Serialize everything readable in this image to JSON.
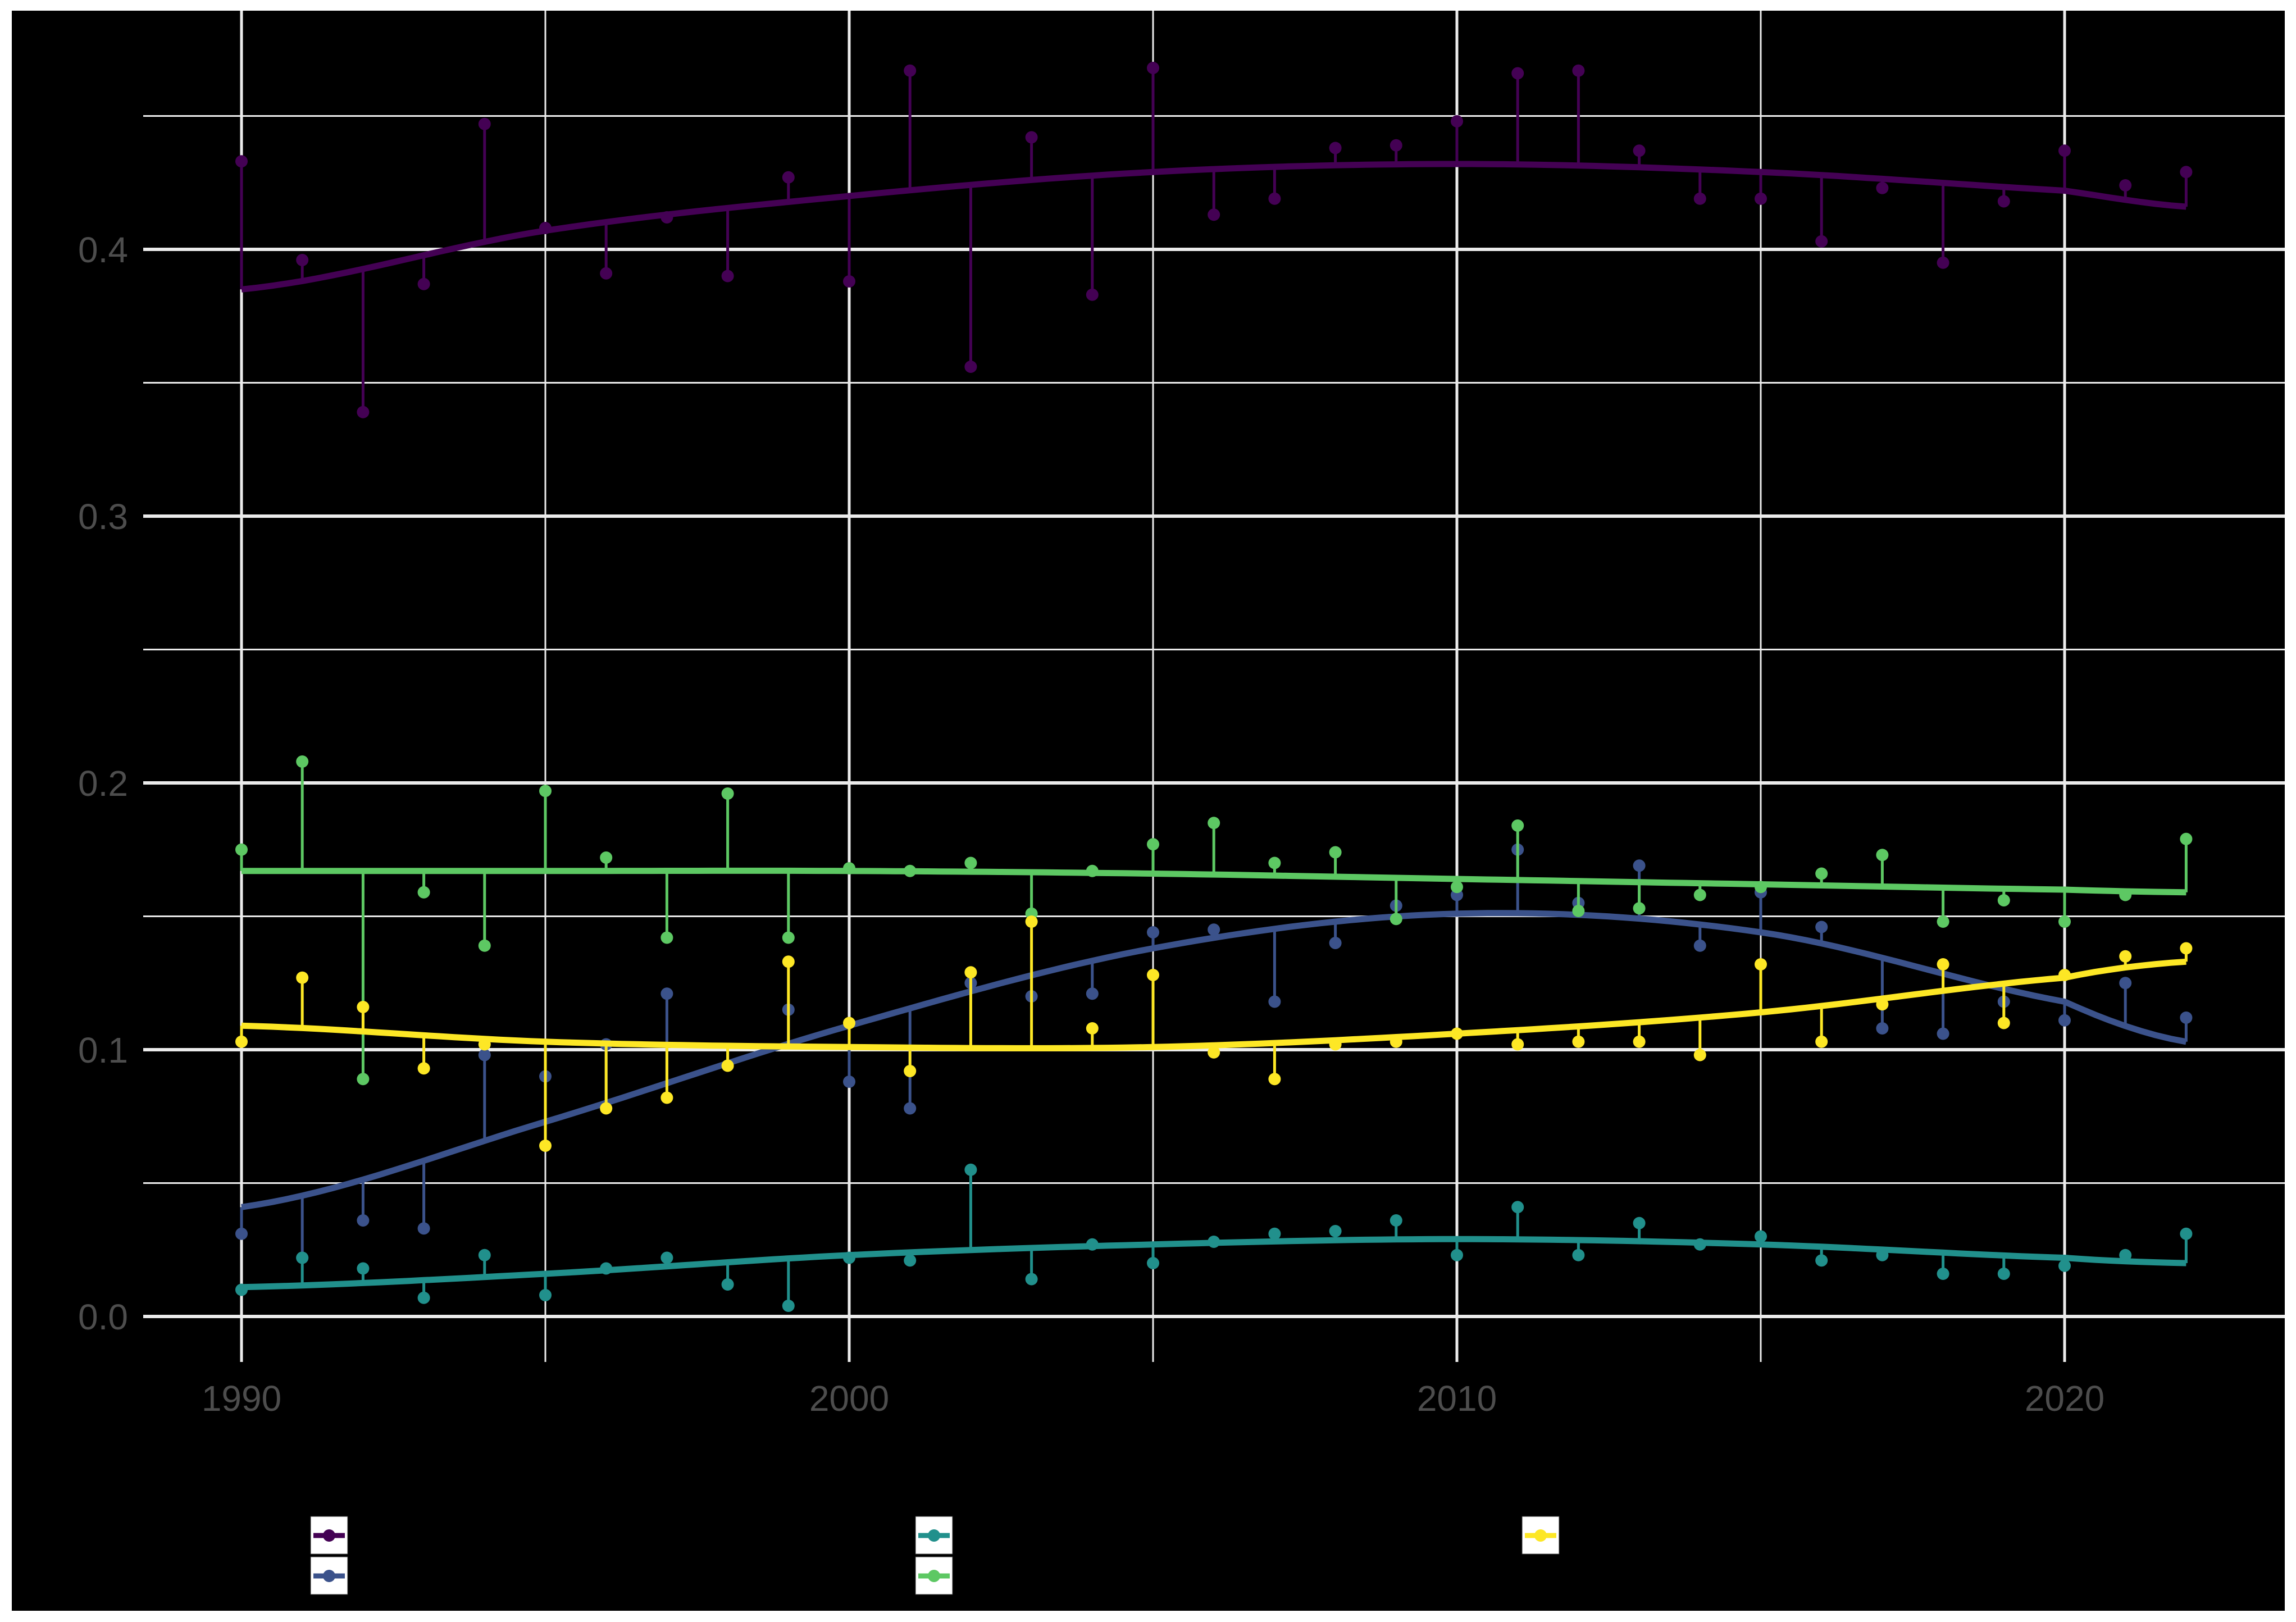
{
  "chart_data": {
    "type": "line",
    "subtype": "lollipop-residuals-with-smooth-fit",
    "title": "",
    "xlabel": "",
    "ylabel": "",
    "xlim": [
      1988.4,
      2022.5
    ],
    "ylim": [
      -0.02,
      0.49
    ],
    "x_ticks": [
      1990,
      2000,
      2010,
      2020
    ],
    "x_tick_labels": [
      "1990",
      "2000",
      "2010",
      "2020"
    ],
    "x_minor_gridlines": [
      1995,
      2005,
      2015
    ],
    "y_ticks": [
      0.0,
      0.1,
      0.2,
      0.3,
      0.4
    ],
    "y_tick_labels": [
      "0.0",
      "0.1",
      "0.2",
      "0.3",
      "0.4"
    ],
    "y_minor_gridlines": [
      0.05,
      0.15,
      0.25,
      0.35,
      0.45
    ],
    "grid": true,
    "background": "#000000",
    "legend_position": "bottom",
    "x": [
      1990,
      1991,
      1992,
      1993,
      1994,
      1995,
      1996,
      1997,
      1998,
      1999,
      2000,
      2001,
      2002,
      2003,
      2004,
      2005,
      2006,
      2007,
      2008,
      2009,
      2010,
      2011,
      2012,
      2013,
      2014,
      2015,
      2016,
      2017,
      2018,
      2019,
      2020,
      2021,
      2022
    ],
    "series": [
      {
        "name": "",
        "color": "#440154",
        "values": [
          0.433,
          0.396,
          0.339,
          0.387,
          0.447,
          0.408,
          0.391,
          0.412,
          0.39,
          0.427,
          0.388,
          0.467,
          0.356,
          0.442,
          0.383,
          0.468,
          0.413,
          0.419,
          0.438,
          0.439,
          0.448,
          0.466,
          0.467,
          0.437,
          0.419,
          0.419,
          0.403,
          0.423,
          0.395,
          0.418,
          0.437,
          0.424,
          0.429
        ],
        "fit_knots": {
          "x": [
            1990,
            1995,
            2000,
            2005,
            2010,
            2015,
            2020,
            2022
          ],
          "y": [
            0.385,
            0.407,
            0.42,
            0.429,
            0.432,
            0.429,
            0.422,
            0.416
          ]
        }
      },
      {
        "name": "",
        "color": "#3b528b",
        "values": [
          0.031,
          0.022,
          0.036,
          0.033,
          0.098,
          0.09,
          0.102,
          0.121,
          0.094,
          0.115,
          0.088,
          0.078,
          0.125,
          0.12,
          0.121,
          0.144,
          0.145,
          0.118,
          0.14,
          0.154,
          0.158,
          0.175,
          0.155,
          0.169,
          0.139,
          0.159,
          0.146,
          0.108,
          0.106,
          0.118,
          0.111,
          0.125,
          0.112
        ],
        "fit_knots": {
          "x": [
            1990,
            1995,
            2000,
            2005,
            2010,
            2015,
            2020,
            2022
          ],
          "y": [
            0.041,
            0.073,
            0.109,
            0.138,
            0.151,
            0.144,
            0.118,
            0.103
          ]
        }
      },
      {
        "name": "",
        "color": "#21908c",
        "values": [
          0.01,
          0.022,
          0.018,
          0.007,
          0.023,
          0.008,
          0.018,
          0.022,
          0.012,
          0.004,
          0.022,
          0.021,
          0.055,
          0.014,
          0.027,
          0.02,
          0.028,
          0.031,
          0.032,
          0.036,
          0.023,
          0.041,
          0.023,
          0.035,
          0.027,
          0.03,
          0.021,
          0.023,
          0.016,
          0.016,
          0.019,
          0.023,
          0.031
        ],
        "fit_knots": {
          "x": [
            1990,
            1995,
            2000,
            2005,
            2010,
            2015,
            2020,
            2022
          ],
          "y": [
            0.011,
            0.016,
            0.023,
            0.027,
            0.029,
            0.027,
            0.022,
            0.02
          ]
        }
      },
      {
        "name": "",
        "color": "#5dc863",
        "values": [
          0.175,
          0.208,
          0.089,
          0.159,
          0.139,
          0.197,
          0.172,
          0.142,
          0.196,
          0.142,
          0.168,
          0.167,
          0.17,
          0.151,
          0.167,
          0.177,
          0.185,
          0.17,
          0.174,
          0.149,
          0.161,
          0.184,
          0.152,
          0.153,
          0.158,
          0.161,
          0.166,
          0.173,
          0.148,
          0.156,
          0.148,
          0.158,
          0.179
        ],
        "fit_knots": {
          "x": [
            1990,
            1995,
            2000,
            2005,
            2010,
            2015,
            2020,
            2022
          ],
          "y": [
            0.167,
            0.167,
            0.167,
            0.166,
            0.164,
            0.162,
            0.16,
            0.159
          ]
        }
      },
      {
        "name": "",
        "color": "#fde725",
        "values": [
          0.103,
          0.127,
          0.116,
          0.093,
          0.102,
          0.064,
          0.078,
          0.082,
          0.094,
          0.133,
          0.11,
          0.092,
          0.129,
          0.148,
          0.108,
          0.128,
          0.099,
          0.089,
          0.102,
          0.103,
          0.106,
          0.102,
          0.103,
          0.103,
          0.098,
          0.132,
          0.103,
          0.117,
          0.132,
          0.11,
          0.128,
          0.135,
          0.138
        ],
        "fit_knots": {
          "x": [
            1990,
            1995,
            2000,
            2005,
            2010,
            2015,
            2020,
            2022
          ],
          "y": [
            0.109,
            0.103,
            0.101,
            0.101,
            0.106,
            0.114,
            0.127,
            0.133
          ]
        }
      }
    ]
  },
  "legend": {
    "items": [
      {
        "label": "",
        "color": "#440154"
      },
      {
        "label": "",
        "color": "#3b528b"
      },
      {
        "label": "",
        "color": "#21908c"
      },
      {
        "label": "",
        "color": "#5dc863"
      },
      {
        "label": "",
        "color": "#fde725"
      }
    ]
  },
  "style": {
    "panel_bg": "#000000",
    "page_bg": "#ffffff",
    "grid_major": "#ebebeb",
    "grid_minor": "#ebebeb",
    "tick_text": "#4d4d4d",
    "legend_key_bg": "#ffffff"
  }
}
